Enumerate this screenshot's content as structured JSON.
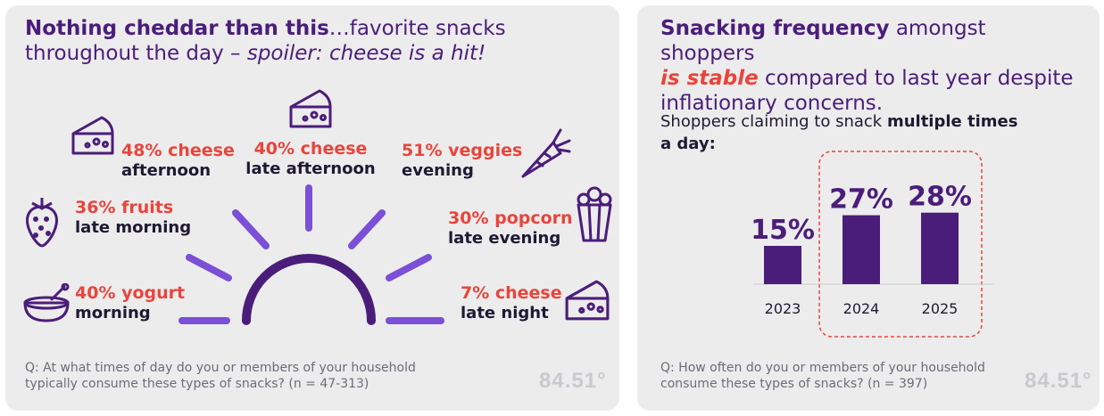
{
  "left": {
    "headline_bold": "Nothing cheddar than this",
    "headline_regular_1": "…favorite snacks",
    "headline_regular_2": "throughout the day – ",
    "headline_italic": "spoiler: cheese is a hit!",
    "items": [
      {
        "stat": "40% yogurt",
        "time": "morning",
        "icon": "yogurt-bowl-icon"
      },
      {
        "stat": "36% fruits",
        "time": "late morning",
        "icon": "strawberry-icon"
      },
      {
        "stat": "48% cheese",
        "time": "afternoon",
        "icon": "cheese-icon"
      },
      {
        "stat": "40% cheese",
        "time": "late afternoon",
        "icon": "cheese-icon"
      },
      {
        "stat": "51% veggies",
        "time": "evening",
        "icon": "carrot-icon"
      },
      {
        "stat": "30% popcorn",
        "time": "late evening",
        "icon": "popcorn-icon"
      },
      {
        "stat": "7% cheese",
        "time": "late night",
        "icon": "cheese-icon"
      }
    ],
    "footnote_line1": "Q: At what times of day do you or members of your household",
    "footnote_line2": "typically consume these types of snacks? (n = 47-313)",
    "logo": "84.51°"
  },
  "right": {
    "headline_bold": "Snacking frequency",
    "headline_regular_1": " amongst shoppers",
    "headline_red": "is stable",
    "headline_regular_2": " compared to last year despite",
    "headline_regular_3": "inflationary concerns.",
    "subhead_regular": "Shoppers claiming to snack ",
    "subhead_bold_1": "multiple times",
    "subhead_bold_2": "a day:",
    "footnote_line1": "Q: How often do you or members of your household",
    "footnote_line2": "consume these types of snacks? (n = 397)",
    "logo": "84.51°"
  },
  "colors": {
    "purple": "#4b1d7a",
    "violet": "#7b4fd6",
    "red": "#e8453c",
    "bar": "#4b1d7a",
    "card_bg": "#ececec"
  },
  "chart_data": {
    "type": "bar",
    "categories": [
      "2023",
      "2024",
      "2025"
    ],
    "values": [
      15,
      27,
      28
    ],
    "value_labels": [
      "15%",
      "27%",
      "28%"
    ],
    "ylim": [
      0,
      30
    ],
    "highlight": [
      "2024",
      "2025"
    ],
    "grid": false
  }
}
